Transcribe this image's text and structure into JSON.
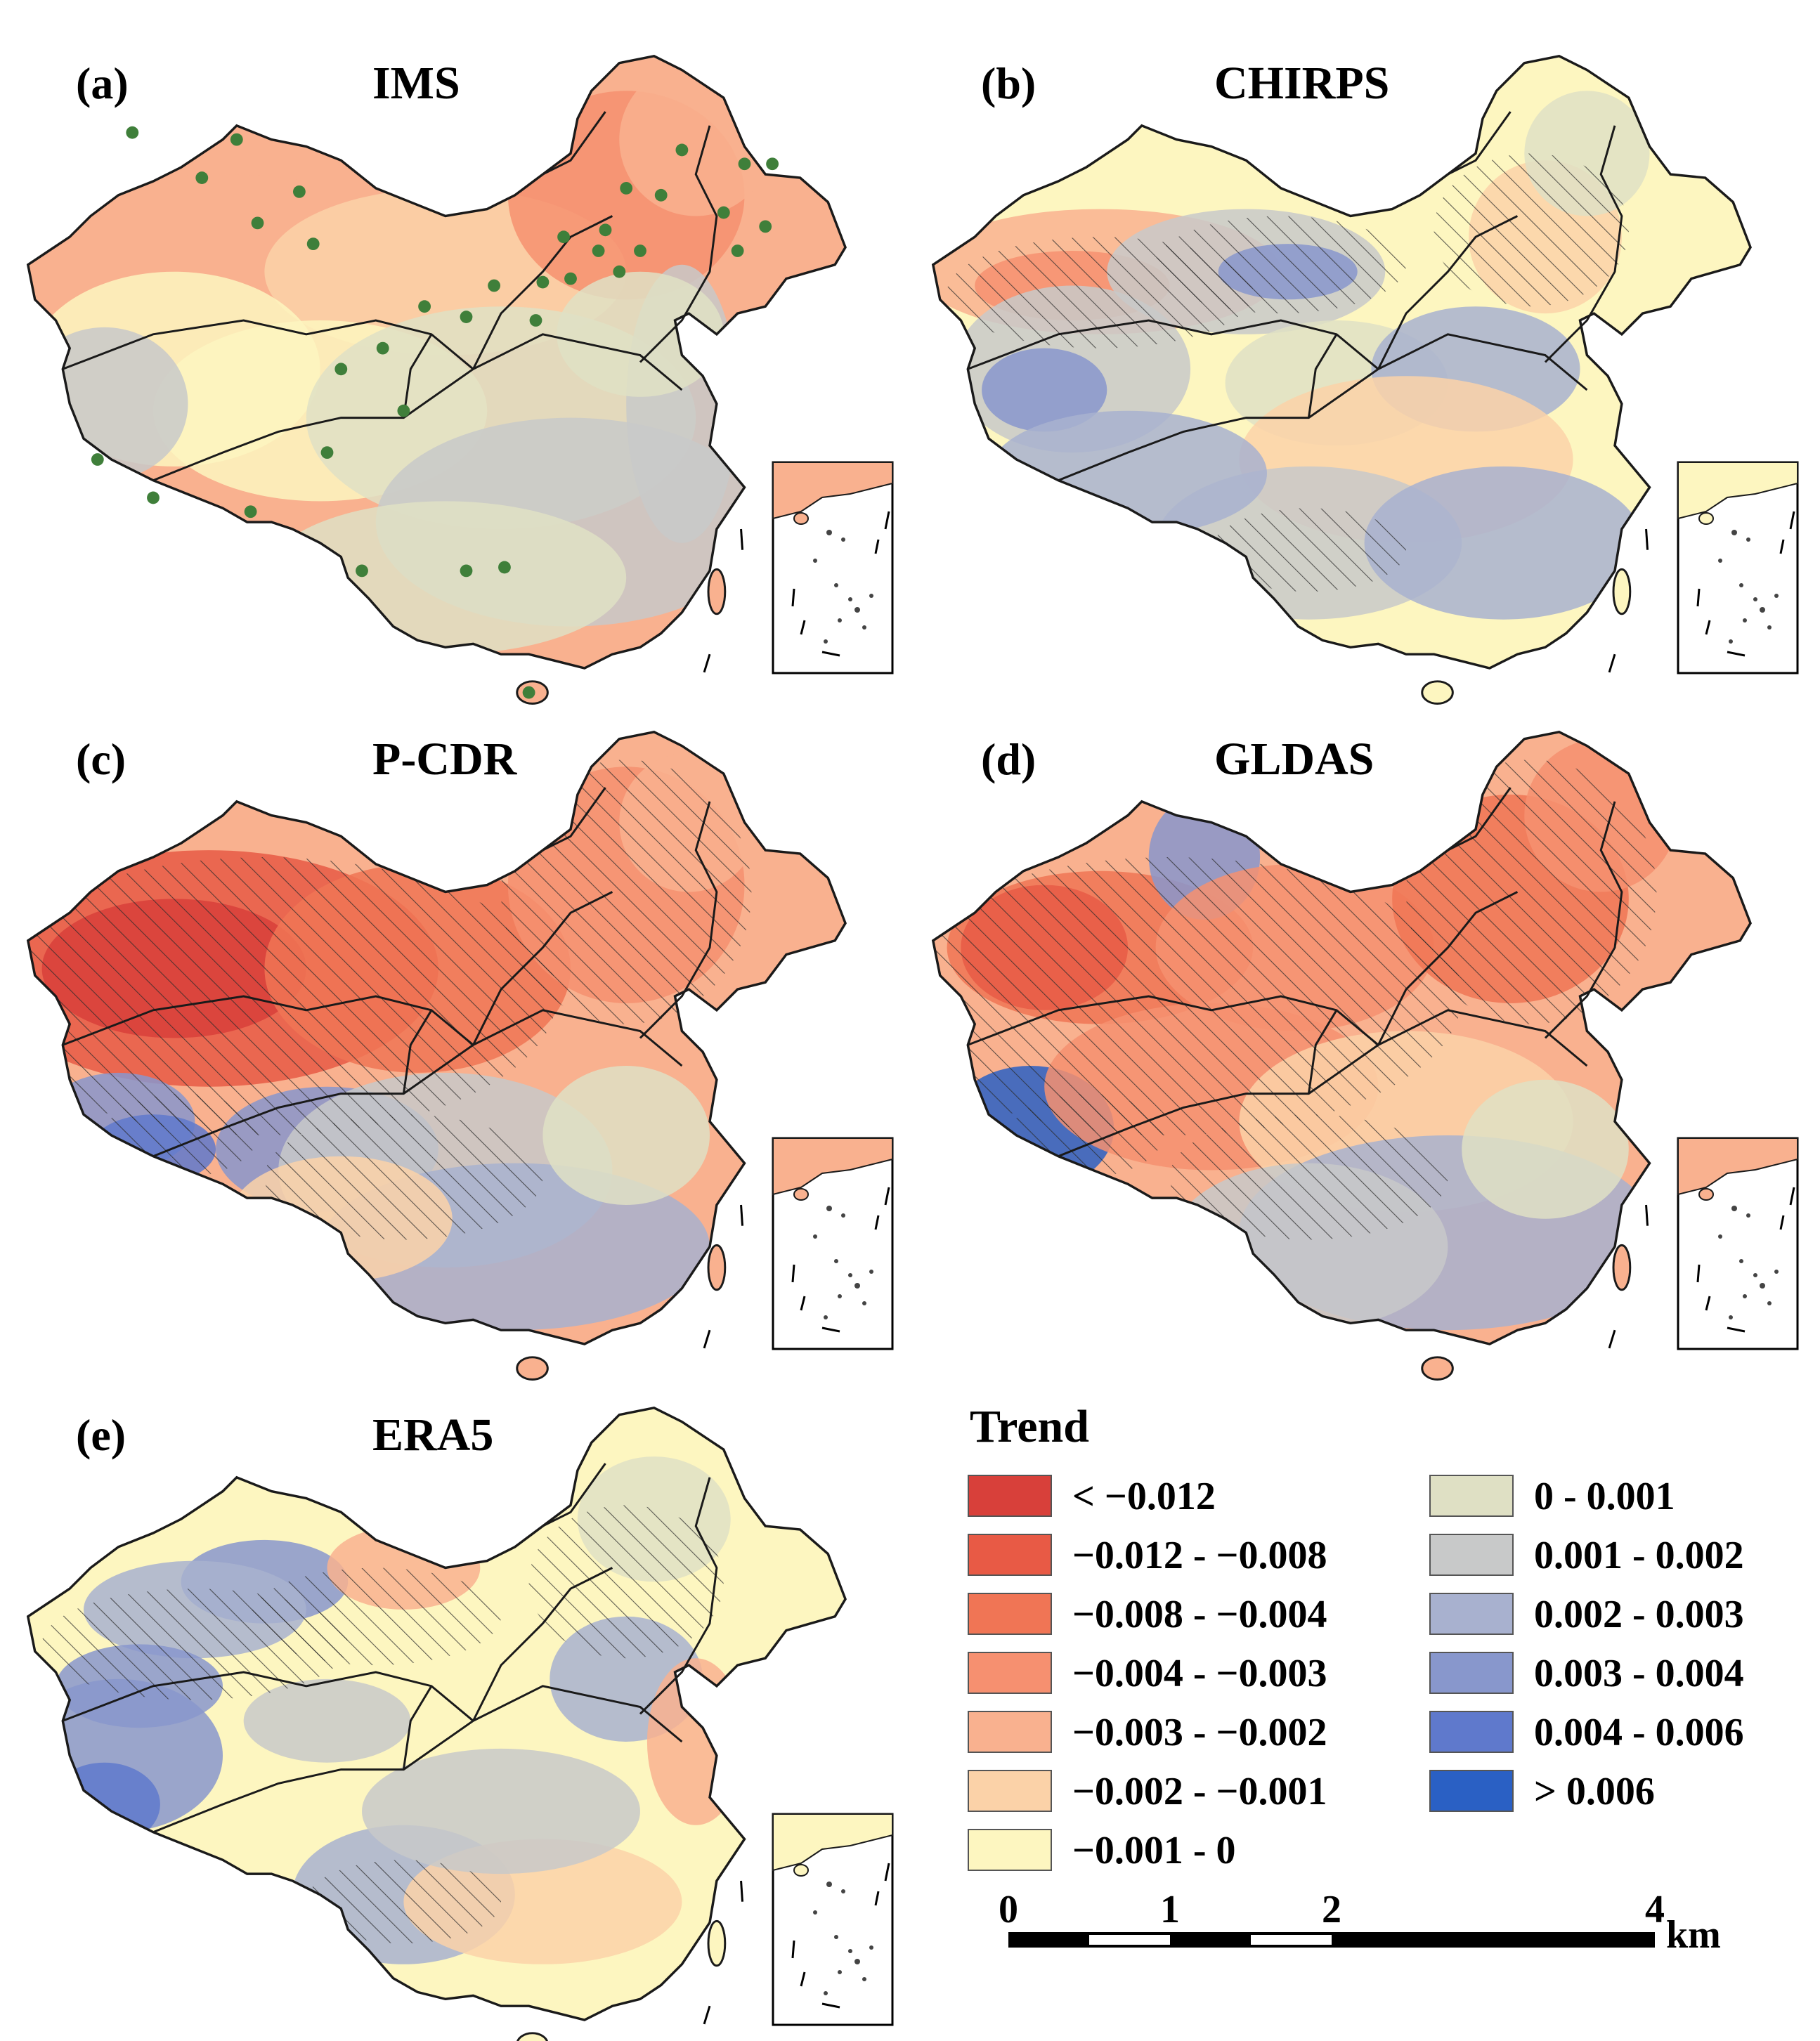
{
  "figure": {
    "panels": [
      {
        "id": "a",
        "label": "(a)",
        "title": "IMS",
        "scheme": "ims",
        "hatch": "none",
        "stations": true
      },
      {
        "id": "b",
        "label": "(b)",
        "title": "CHIRPS",
        "scheme": "chirps",
        "hatch": "light",
        "stations": false
      },
      {
        "id": "c",
        "label": "(c)",
        "title": "P-CDR",
        "scheme": "pcdr",
        "hatch": "heavy",
        "stations": false
      },
      {
        "id": "d",
        "label": "(d)",
        "title": "GLDAS",
        "scheme": "gldas",
        "hatch": "heavy",
        "stations": false
      },
      {
        "id": "e",
        "label": "(e)",
        "title": "ERA5",
        "scheme": "era5",
        "hatch": "light",
        "stations": false
      }
    ],
    "station_color": "#3f7f3a",
    "boundary_color": "#1a1a1a"
  },
  "legend": {
    "title": "Trend",
    "items": [
      {
        "label": "< −0.012",
        "color": "#d8403a"
      },
      {
        "label": "−0.012 - −0.008",
        "color": "#e85a45"
      },
      {
        "label": "−0.008 - −0.004",
        "color": "#f07555"
      },
      {
        "label": "−0.004 - −0.003",
        "color": "#f69070"
      },
      {
        "label": "−0.003 - −0.002",
        "color": "#f9b18f"
      },
      {
        "label": "−0.002 - −0.001",
        "color": "#fbd2a8"
      },
      {
        "label": "−0.001 - 0",
        "color": "#fdf6c0"
      },
      {
        "label": "0 - 0.001",
        "color": "#dfe0c4"
      },
      {
        "label": "0.001 - 0.002",
        "color": "#c8c9c9"
      },
      {
        "label": "0.002 - 0.003",
        "color": "#a8b1cf"
      },
      {
        "label": "0.003 - 0.004",
        "color": "#8897cc"
      },
      {
        "label": "0.004 - 0.006",
        "color": "#5f79cc"
      },
      {
        "label": "> 0.006",
        "color": "#2a60c4"
      }
    ]
  },
  "scalebar": {
    "ticks": [
      "0",
      "1",
      "2",
      "4"
    ],
    "unit": "km"
  }
}
